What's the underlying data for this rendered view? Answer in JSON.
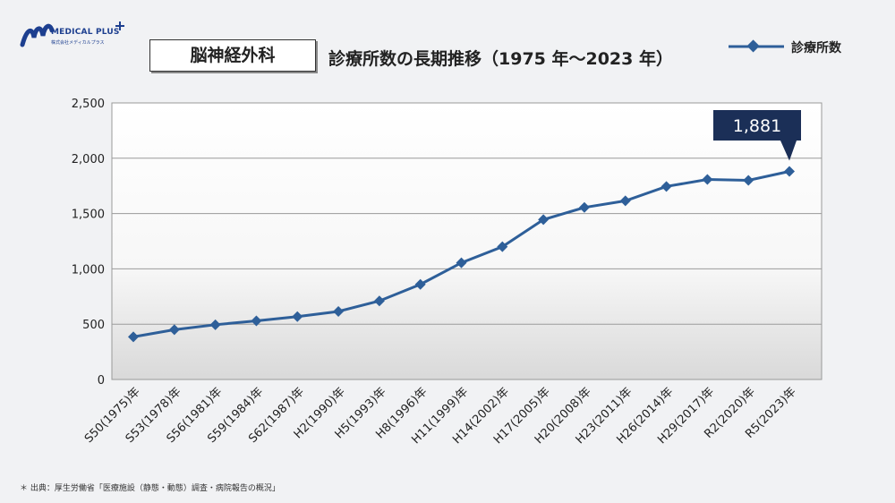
{
  "brand": {
    "name": "MEDICAL PLUS",
    "subname": "株式会社メディカルプラス"
  },
  "department": "脳神経外科",
  "chart_data": {
    "type": "line",
    "title": "診療所数の長期推移（1975 年～2023 年）",
    "categories": [
      "S50(1975)年",
      "S53(1978)年",
      "S56(1981)年",
      "S59(1984)年",
      "S62(1987)年",
      "H2(1990)年",
      "H5(1993)年",
      "H8(1996)年",
      "H11(1999)年",
      "H14(2002)年",
      "H17(2005)年",
      "H20(2008)年",
      "H23(2011)年",
      "H26(2014)年",
      "H29(2017)年",
      "R2(2020)年",
      "R5(2023)年"
    ],
    "series": [
      {
        "name": "診療所数",
        "values": [
          385,
          450,
          495,
          530,
          568,
          615,
          710,
          860,
          1055,
          1200,
          1445,
          1555,
          1615,
          1745,
          1808,
          1800,
          1881
        ],
        "color": "#2e5f99"
      }
    ],
    "ylim": [
      0,
      2500
    ],
    "yticks": [
      0,
      500,
      1000,
      1500,
      2000,
      2500
    ],
    "ytick_labels": [
      "0",
      "500",
      "1,000",
      "1,500",
      "2,000",
      "2,500"
    ],
    "grid": true,
    "legend_position": "top-right",
    "callout": {
      "label": "1,881",
      "index": 16
    }
  },
  "source_note": "＊ 出典：厚生労働省「医療施設（静態・動態）調査・病院報告の概況」",
  "colors": {
    "line": "#2e5f99",
    "callout_bg": "#1b2f57",
    "logo": "#1d3f8f"
  }
}
